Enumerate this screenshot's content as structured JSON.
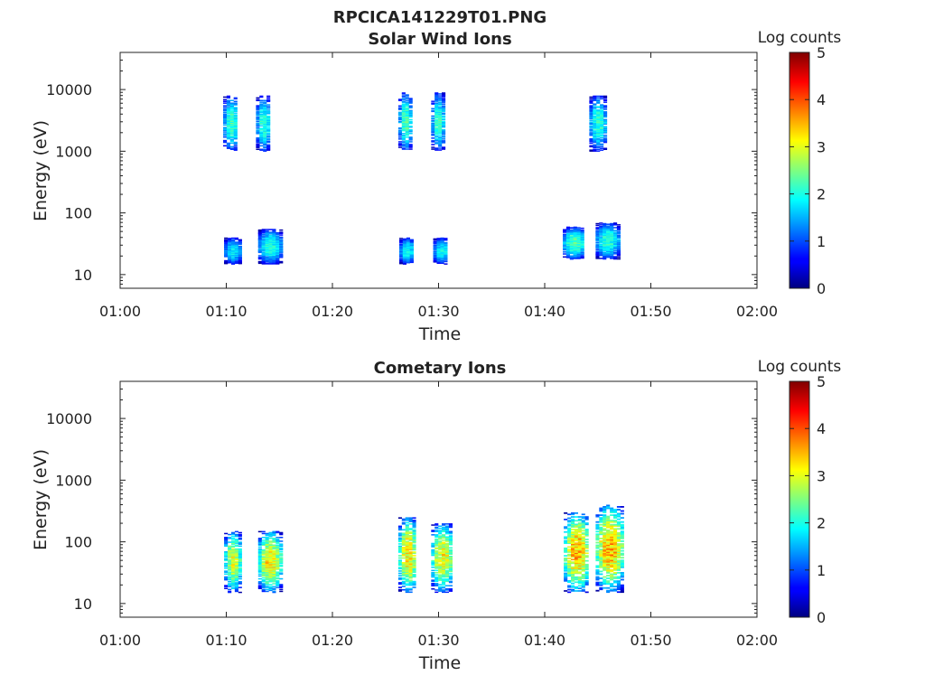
{
  "figure_title": "RPCICA141229T01.PNG",
  "chart_data": [
    {
      "type": "heatmap",
      "title": "Solar Wind Ions",
      "xlabel": "Time",
      "ylabel": "Energy (eV)",
      "xticks": [
        "01:00",
        "01:10",
        "01:20",
        "01:30",
        "01:40",
        "01:50",
        "02:00"
      ],
      "xlim_minutes": [
        60,
        120
      ],
      "yscale": "log",
      "ylim": [
        6,
        40000
      ],
      "yticks": [
        10,
        100,
        1000,
        10000
      ],
      "ytick_labels": [
        "10",
        "100",
        "1000",
        "10000"
      ],
      "colorbar": {
        "label": "Log counts",
        "min": 0,
        "max": 5,
        "ticks": [
          "0",
          "1",
          "2",
          "3",
          "4",
          "5"
        ],
        "colormap": "jet"
      },
      "bursts": [
        {
          "t_start": 69.7,
          "t_end": 71.0,
          "e_low": 1000,
          "e_high": 8000,
          "peak_log_counts": 2.6
        },
        {
          "t_start": 72.8,
          "t_end": 74.0,
          "e_low": 1000,
          "e_high": 8000,
          "peak_log_counts": 2.5
        },
        {
          "t_start": 69.8,
          "t_end": 71.2,
          "e_low": 15,
          "e_high": 40,
          "peak_log_counts": 2.2
        },
        {
          "t_start": 73.0,
          "t_end": 75.0,
          "e_low": 15,
          "e_high": 55,
          "peak_log_counts": 2.4
        },
        {
          "t_start": 86.2,
          "t_end": 87.3,
          "e_low": 1000,
          "e_high": 9000,
          "peak_log_counts": 2.6
        },
        {
          "t_start": 89.3,
          "t_end": 90.4,
          "e_low": 1000,
          "e_high": 9000,
          "peak_log_counts": 2.5
        },
        {
          "t_start": 86.3,
          "t_end": 87.5,
          "e_low": 15,
          "e_high": 40,
          "peak_log_counts": 2.3
        },
        {
          "t_start": 89.5,
          "t_end": 90.8,
          "e_low": 15,
          "e_high": 40,
          "peak_log_counts": 2.3
        },
        {
          "t_start": 101.7,
          "t_end": 103.6,
          "e_low": 18,
          "e_high": 60,
          "peak_log_counts": 2.7
        },
        {
          "t_start": 104.8,
          "t_end": 106.8,
          "e_low": 18,
          "e_high": 70,
          "peak_log_counts": 2.5
        },
        {
          "t_start": 104.2,
          "t_end": 105.6,
          "e_low": 1000,
          "e_high": 8000,
          "peak_log_counts": 2.5
        }
      ]
    },
    {
      "type": "heatmap",
      "title": "Cometary Ions",
      "xlabel": "Time",
      "ylabel": "Energy (eV)",
      "xticks": [
        "01:00",
        "01:10",
        "01:20",
        "01:30",
        "01:40",
        "01:50",
        "02:00"
      ],
      "xlim_minutes": [
        60,
        120
      ],
      "yscale": "log",
      "ylim": [
        6,
        40000
      ],
      "yticks": [
        10,
        100,
        1000,
        10000
      ],
      "ytick_labels": [
        "10",
        "100",
        "1000",
        "10000"
      ],
      "colorbar": {
        "label": "Log counts",
        "min": 0,
        "max": 5,
        "ticks": [
          "0",
          "1",
          "2",
          "3",
          "4",
          "5"
        ],
        "colormap": "jet"
      },
      "bursts": [
        {
          "t_start": 69.8,
          "t_end": 71.2,
          "e_low": 15,
          "e_high": 150,
          "peak_log_counts": 3.4
        },
        {
          "t_start": 73.0,
          "t_end": 75.0,
          "e_low": 15,
          "e_high": 150,
          "peak_log_counts": 3.8
        },
        {
          "t_start": 86.2,
          "t_end": 87.8,
          "e_low": 15,
          "e_high": 250,
          "peak_log_counts": 3.8
        },
        {
          "t_start": 89.3,
          "t_end": 91.2,
          "e_low": 15,
          "e_high": 200,
          "peak_log_counts": 3.6
        },
        {
          "t_start": 101.8,
          "t_end": 104.0,
          "e_low": 15,
          "e_high": 300,
          "peak_log_counts": 4.1
        },
        {
          "t_start": 104.8,
          "t_end": 107.2,
          "e_low": 15,
          "e_high": 400,
          "peak_log_counts": 4.1
        }
      ]
    }
  ]
}
